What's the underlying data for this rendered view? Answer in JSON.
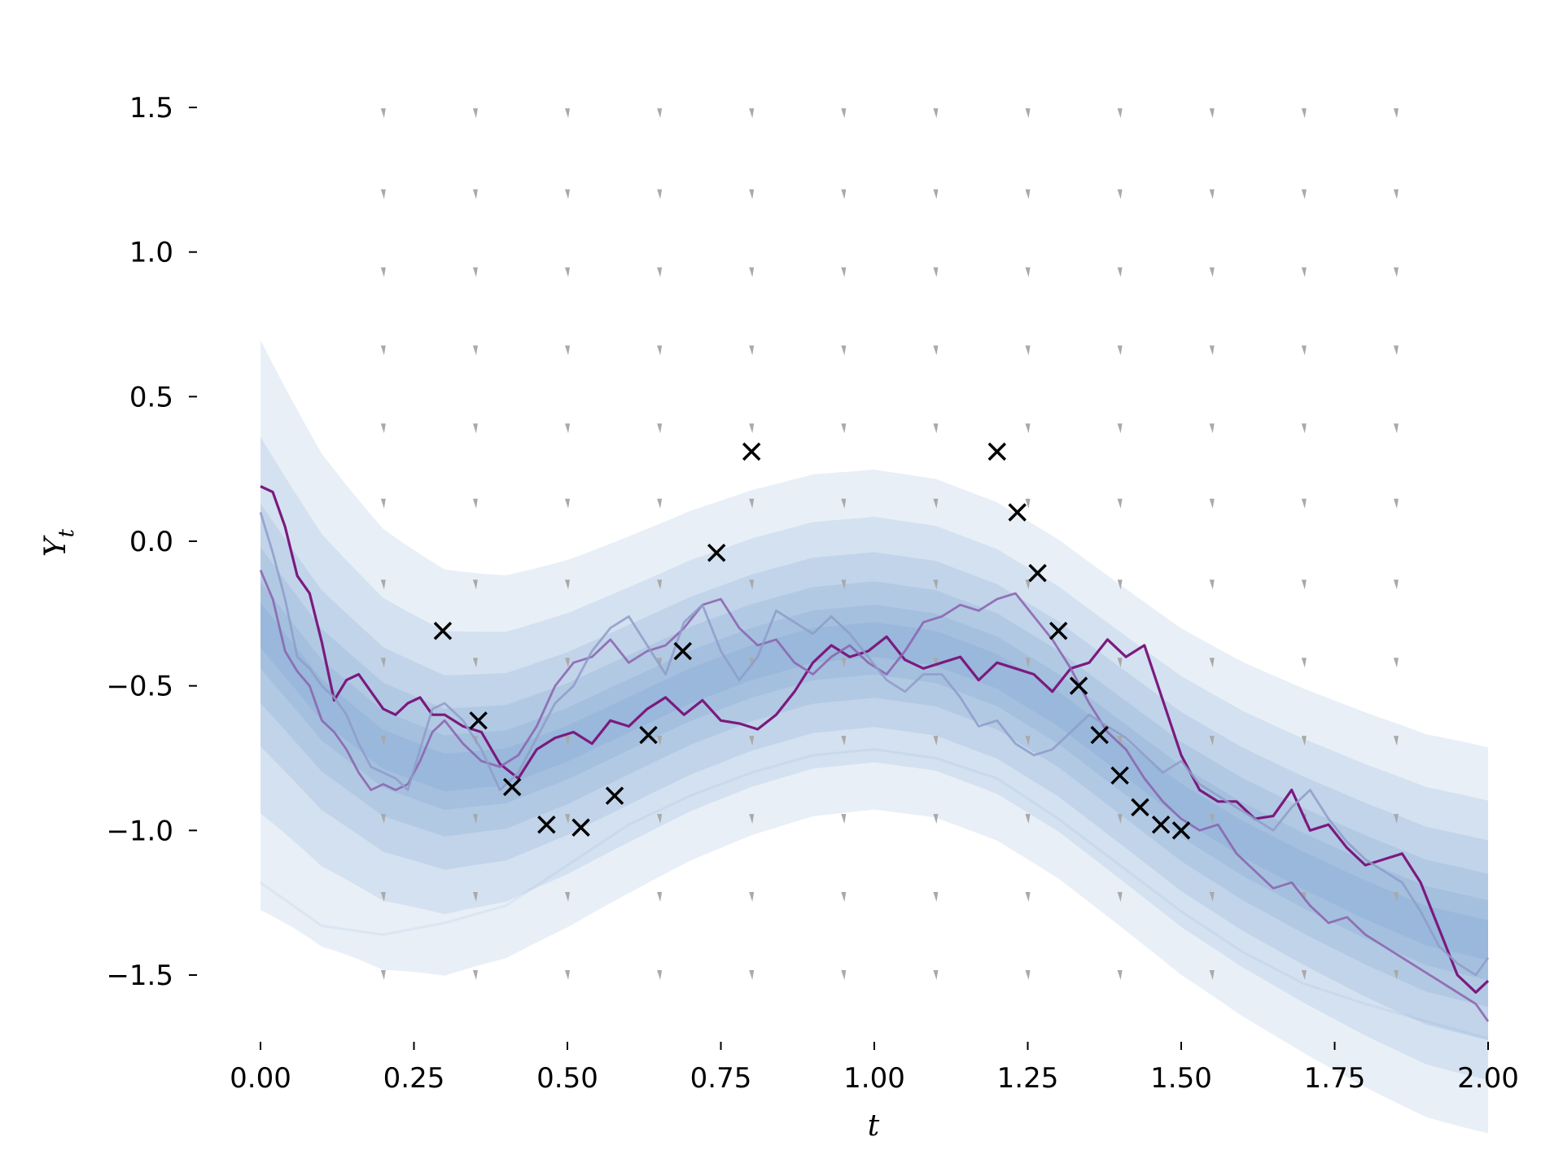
{
  "chart_data": {
    "type": "line",
    "xlabel": "t",
    "ylabel_main": "Y",
    "ylabel_sub": "t",
    "xlim": [
      -0.08,
      2.05
    ],
    "ylim": [
      -1.78,
      1.68
    ],
    "xticks": [
      {
        "value": 0.0,
        "label": "0.00"
      },
      {
        "value": 0.25,
        "label": "0.25"
      },
      {
        "value": 0.5,
        "label": "0.50"
      },
      {
        "value": 0.75,
        "label": "0.75"
      },
      {
        "value": 1.0,
        "label": "1.00"
      },
      {
        "value": 1.25,
        "label": "1.25"
      },
      {
        "value": 1.5,
        "label": "1.50"
      },
      {
        "value": 1.75,
        "label": "1.75"
      },
      {
        "value": 2.0,
        "label": "2.00"
      }
    ],
    "yticks": [
      {
        "value": 1.5,
        "label": "1.5"
      },
      {
        "value": 1.0,
        "label": "1.0"
      },
      {
        "value": 0.5,
        "label": "0.5"
      },
      {
        "value": 0.0,
        "label": "0.0"
      },
      {
        "value": -0.5,
        "label": "−0.5"
      },
      {
        "value": -1.0,
        "label": "−1.0"
      },
      {
        "value": -1.5,
        "label": "−1.5"
      }
    ],
    "grid": false,
    "band_color": "#4f83bf",
    "mean_curve": {
      "x": [
        0.0,
        0.1,
        0.2,
        0.3,
        0.4,
        0.5,
        0.6,
        0.7,
        0.8,
        0.9,
        1.0,
        1.1,
        1.2,
        1.3,
        1.4,
        1.5,
        1.6,
        1.7,
        1.8,
        1.9,
        2.0
      ],
      "y": [
        -0.29,
        -0.55,
        -0.72,
        -0.8,
        -0.78,
        -0.7,
        -0.6,
        -0.5,
        -0.42,
        -0.36,
        -0.34,
        -0.37,
        -0.45,
        -0.58,
        -0.74,
        -0.9,
        -1.03,
        -1.14,
        -1.24,
        -1.33,
        -1.38
      ]
    },
    "band_half_widths": [
      0.06,
      0.12,
      0.2,
      0.3,
      0.42,
      0.58
    ],
    "band_widen": [
      0.3,
      0.25,
      0.35,
      0.4,
      0.55,
      0.7
    ],
    "faint_lower_curve": {
      "x": [
        0.0,
        0.1,
        0.2,
        0.3,
        0.4,
        0.5,
        0.6,
        0.7,
        0.8,
        0.9,
        1.0,
        1.1,
        1.2,
        1.3,
        1.4,
        1.5,
        1.6,
        1.7,
        1.8,
        1.9,
        2.0
      ],
      "y": [
        -1.18,
        -1.33,
        -1.36,
        -1.32,
        -1.26,
        -1.12,
        -0.98,
        -0.88,
        -0.8,
        -0.74,
        -0.72,
        -0.75,
        -0.82,
        -0.96,
        -1.12,
        -1.28,
        -1.42,
        -1.53,
        -1.6,
        -1.66,
        -1.72
      ]
    },
    "vector_field": {
      "x": [
        0.2,
        0.35,
        0.5,
        0.65,
        0.8,
        0.95,
        1.1,
        1.25,
        1.4,
        1.55,
        1.7,
        1.85
      ],
      "y": [
        1.48,
        1.2,
        0.93,
        0.66,
        0.39,
        0.13,
        -0.15,
        -0.42,
        -0.69,
        -0.96,
        -1.23,
        -1.5
      ],
      "color": "#a9a9a9"
    },
    "series": [
      {
        "color": "#7b1a7e",
        "opacity": 1.0,
        "width": 3.2,
        "x": [
          0.0,
          0.02,
          0.04,
          0.06,
          0.08,
          0.1,
          0.12,
          0.14,
          0.16,
          0.18,
          0.2,
          0.22,
          0.24,
          0.26,
          0.28,
          0.3,
          0.33,
          0.36,
          0.39,
          0.42,
          0.45,
          0.48,
          0.51,
          0.54,
          0.57,
          0.6,
          0.63,
          0.66,
          0.69,
          0.72,
          0.75,
          0.78,
          0.81,
          0.84,
          0.87,
          0.9,
          0.93,
          0.96,
          0.99,
          1.02,
          1.05,
          1.08,
          1.11,
          1.14,
          1.17,
          1.2,
          1.23,
          1.26,
          1.29,
          1.32,
          1.35,
          1.38,
          1.41,
          1.44,
          1.47,
          1.5,
          1.53,
          1.56,
          1.59,
          1.62,
          1.65,
          1.68,
          1.71,
          1.74,
          1.77,
          1.8,
          1.83,
          1.86,
          1.89,
          1.92,
          1.95,
          1.98,
          2.0
        ],
        "y": [
          0.19,
          0.17,
          0.05,
          -0.12,
          -0.18,
          -0.35,
          -0.55,
          -0.48,
          -0.46,
          -0.52,
          -0.58,
          -0.6,
          -0.56,
          -0.54,
          -0.6,
          -0.6,
          -0.64,
          -0.66,
          -0.77,
          -0.82,
          -0.72,
          -0.68,
          -0.66,
          -0.7,
          -0.62,
          -0.64,
          -0.58,
          -0.54,
          -0.6,
          -0.55,
          -0.62,
          -0.63,
          -0.65,
          -0.6,
          -0.52,
          -0.42,
          -0.36,
          -0.4,
          -0.38,
          -0.33,
          -0.41,
          -0.44,
          -0.42,
          -0.4,
          -0.48,
          -0.42,
          -0.44,
          -0.46,
          -0.52,
          -0.44,
          -0.42,
          -0.34,
          -0.4,
          -0.36,
          -0.55,
          -0.74,
          -0.86,
          -0.9,
          -0.9,
          -0.96,
          -0.95,
          -0.86,
          -1.0,
          -0.98,
          -1.06,
          -1.12,
          -1.1,
          -1.08,
          -1.18,
          -1.34,
          -1.5,
          -1.56,
          -1.52
        ]
      },
      {
        "color": "#8a62ad",
        "opacity": 0.85,
        "width": 2.8,
        "x": [
          0.0,
          0.02,
          0.04,
          0.06,
          0.08,
          0.1,
          0.12,
          0.14,
          0.16,
          0.18,
          0.2,
          0.22,
          0.24,
          0.26,
          0.28,
          0.3,
          0.33,
          0.36,
          0.39,
          0.42,
          0.45,
          0.48,
          0.51,
          0.54,
          0.57,
          0.6,
          0.63,
          0.66,
          0.69,
          0.72,
          0.75,
          0.78,
          0.81,
          0.84,
          0.87,
          0.9,
          0.93,
          0.96,
          0.99,
          1.02,
          1.05,
          1.08,
          1.11,
          1.14,
          1.17,
          1.2,
          1.23,
          1.26,
          1.29,
          1.32,
          1.35,
          1.38,
          1.41,
          1.44,
          1.47,
          1.5,
          1.53,
          1.56,
          1.59,
          1.62,
          1.65,
          1.68,
          1.71,
          1.74,
          1.77,
          1.8,
          1.83,
          1.86,
          1.89,
          1.92,
          1.95,
          1.98,
          2.0
        ],
        "y": [
          -0.1,
          -0.2,
          -0.38,
          -0.45,
          -0.5,
          -0.62,
          -0.66,
          -0.72,
          -0.8,
          -0.86,
          -0.84,
          -0.86,
          -0.84,
          -0.76,
          -0.66,
          -0.62,
          -0.7,
          -0.76,
          -0.78,
          -0.74,
          -0.64,
          -0.5,
          -0.42,
          -0.4,
          -0.34,
          -0.42,
          -0.38,
          -0.36,
          -0.3,
          -0.22,
          -0.2,
          -0.3,
          -0.36,
          -0.34,
          -0.42,
          -0.46,
          -0.4,
          -0.36,
          -0.42,
          -0.46,
          -0.38,
          -0.28,
          -0.26,
          -0.22,
          -0.24,
          -0.2,
          -0.18,
          -0.26,
          -0.34,
          -0.44,
          -0.56,
          -0.66,
          -0.72,
          -0.82,
          -0.9,
          -0.96,
          -1.0,
          -0.98,
          -1.08,
          -1.14,
          -1.2,
          -1.18,
          -1.26,
          -1.32,
          -1.3,
          -1.36,
          -1.4,
          -1.44,
          -1.48,
          -1.52,
          -1.56,
          -1.6,
          -1.66
        ]
      },
      {
        "color": "#8e9cc9",
        "opacity": 0.85,
        "width": 2.8,
        "x": [
          0.0,
          0.02,
          0.04,
          0.06,
          0.08,
          0.1,
          0.12,
          0.14,
          0.16,
          0.18,
          0.2,
          0.22,
          0.24,
          0.26,
          0.28,
          0.3,
          0.33,
          0.36,
          0.39,
          0.42,
          0.45,
          0.48,
          0.51,
          0.54,
          0.57,
          0.6,
          0.63,
          0.66,
          0.69,
          0.72,
          0.75,
          0.78,
          0.81,
          0.84,
          0.87,
          0.9,
          0.93,
          0.96,
          0.99,
          1.02,
          1.05,
          1.08,
          1.11,
          1.14,
          1.17,
          1.2,
          1.23,
          1.26,
          1.29,
          1.32,
          1.35,
          1.38,
          1.41,
          1.44,
          1.47,
          1.5,
          1.53,
          1.56,
          1.59,
          1.62,
          1.65,
          1.68,
          1.71,
          1.74,
          1.77,
          1.8,
          1.83,
          1.86,
          1.89,
          1.92,
          1.95,
          1.98,
          2.0
        ],
        "y": [
          0.1,
          -0.04,
          -0.2,
          -0.4,
          -0.44,
          -0.5,
          -0.54,
          -0.6,
          -0.7,
          -0.78,
          -0.8,
          -0.82,
          -0.86,
          -0.72,
          -0.58,
          -0.56,
          -0.62,
          -0.72,
          -0.86,
          -0.8,
          -0.68,
          -0.56,
          -0.5,
          -0.38,
          -0.3,
          -0.26,
          -0.36,
          -0.46,
          -0.28,
          -0.22,
          -0.38,
          -0.48,
          -0.4,
          -0.24,
          -0.28,
          -0.32,
          -0.26,
          -0.32,
          -0.4,
          -0.48,
          -0.52,
          -0.46,
          -0.46,
          -0.54,
          -0.64,
          -0.62,
          -0.7,
          -0.74,
          -0.72,
          -0.66,
          -0.6,
          -0.64,
          -0.68,
          -0.74,
          -0.8,
          -0.76,
          -0.84,
          -0.88,
          -0.92,
          -0.96,
          -1.0,
          -0.92,
          -0.86,
          -0.96,
          -1.04,
          -1.1,
          -1.14,
          -1.18,
          -1.28,
          -1.4,
          -1.46,
          -1.5,
          -1.44
        ]
      }
    ],
    "observations": {
      "marker": "x",
      "color": "#000000",
      "x": [
        0.297,
        0.355,
        0.41,
        0.466,
        0.522,
        0.577,
        0.632,
        0.688,
        0.743,
        0.8,
        1.2,
        1.233,
        1.266,
        1.3,
        1.333,
        1.367,
        1.4,
        1.433,
        1.467,
        1.5
      ],
      "y": [
        -0.31,
        -0.62,
        -0.85,
        -0.98,
        -0.99,
        -0.88,
        -0.67,
        -0.38,
        -0.04,
        0.31,
        0.31,
        0.1,
        -0.11,
        -0.31,
        -0.5,
        -0.67,
        -0.81,
        -0.92,
        -0.98,
        -1.0
      ]
    }
  }
}
